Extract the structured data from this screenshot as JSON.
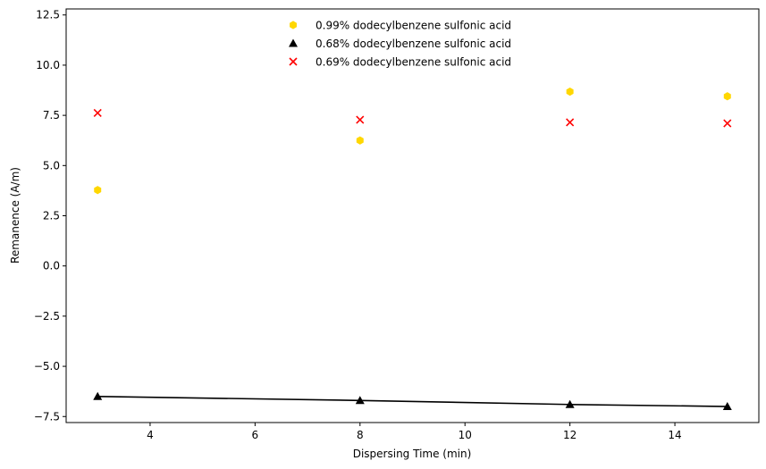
{
  "chart_data": {
    "type": "scatter",
    "title": "",
    "xlabel": "Dispersing Time (min)",
    "ylabel": "Remanence (A/m)",
    "xlim": [
      2.4,
      15.6
    ],
    "ylim": [
      -7.8,
      12.8
    ],
    "xticks": [
      4,
      6,
      8,
      10,
      12,
      14
    ],
    "yticks": [
      -7.5,
      -5.0,
      -2.5,
      0.0,
      2.5,
      5.0,
      7.5,
      10.0,
      12.5
    ],
    "xtick_labels": [
      "4",
      "6",
      "8",
      "10",
      "12",
      "14"
    ],
    "ytick_labels": [
      "−7.5",
      "−5.0",
      "−2.5",
      "0.0",
      "2.5",
      "5.0",
      "7.5",
      "10.0",
      "12.5"
    ],
    "grid": false,
    "legend_position": "top-center",
    "series": [
      {
        "name": "0.99% dodecylbenzene sulfonic acid",
        "marker": "hexagon",
        "color": "#FFD700",
        "x": [
          3,
          8,
          12,
          15
        ],
        "y": [
          3.78,
          6.25,
          8.68,
          8.45
        ],
        "line": false
      },
      {
        "name": "0.68% dodecylbenzene sulfonic acid",
        "marker": "triangle",
        "color": "#000000",
        "x": [
          3,
          8,
          12,
          15
        ],
        "y": [
          -6.5,
          -6.7,
          -6.9,
          -7.0
        ],
        "line": true
      },
      {
        "name": "0.69% dodecylbenzene sulfonic acid",
        "marker": "x",
        "color": "#FF0000",
        "x": [
          3,
          8,
          12,
          15
        ],
        "y": [
          7.62,
          7.28,
          7.15,
          7.1
        ],
        "line": false
      }
    ]
  }
}
